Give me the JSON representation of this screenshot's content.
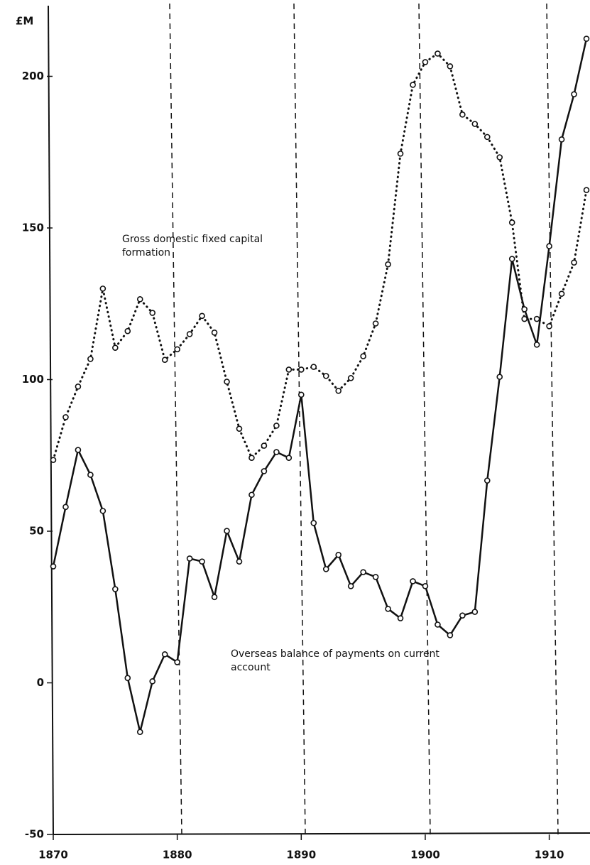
{
  "chart_data": {
    "type": "line",
    "y_unit_label": "£M",
    "x": [
      1870,
      1871,
      1872,
      1873,
      1874,
      1875,
      1876,
      1877,
      1878,
      1879,
      1880,
      1881,
      1882,
      1883,
      1884,
      1885,
      1886,
      1887,
      1888,
      1889,
      1890,
      1891,
      1892,
      1893,
      1894,
      1895,
      1896,
      1897,
      1898,
      1899,
      1900,
      1901,
      1902,
      1903,
      1904,
      1905,
      1906,
      1907,
      1908,
      1909,
      1910,
      1911,
      1912,
      1913
    ],
    "series": [
      {
        "name": "Gross domestic fixed capital formation",
        "color": "#111111",
        "style": "dotted",
        "values": [
          73.5,
          87.6,
          97.7,
          106.8,
          130,
          110.5,
          116,
          126.5,
          122,
          106.5,
          110,
          115,
          121,
          115.5,
          99.3,
          83.8,
          74.2,
          78.2,
          84.8,
          103.3,
          103.3,
          104.2,
          101.2,
          96.3,
          100.5,
          107.7,
          118.5,
          138,
          174.5,
          197.2,
          204.7,
          207.5,
          203.3,
          187.4,
          184.3,
          180,
          173.3,
          151.8,
          120,
          120,
          117.6,
          128.3,
          138.6,
          162.5
        ]
      },
      {
        "name": "Overseas balance of payments on current account",
        "color": "#111111",
        "style": "solid",
        "values": [
          38.4,
          58,
          76.8,
          68.6,
          56.7,
          30.9,
          1.6,
          -16.2,
          0.5,
          9.4,
          6.8,
          41,
          40,
          28.3,
          50.1,
          40,
          62,
          69.8,
          76.1,
          74.2,
          95,
          52.7,
          37.5,
          42.2,
          31.9,
          36.5,
          34.9,
          24.4,
          21.3,
          33.5,
          31.9,
          19.2,
          15.7,
          22.2,
          23.4,
          66.7,
          100.9,
          139.8,
          123.2,
          111.5,
          144,
          179.2,
          194.1,
          212.4
        ]
      }
    ],
    "xlim": [
      1870,
      1913
    ],
    "xticks": [
      1870,
      1880,
      1890,
      1900,
      1910
    ],
    "ylim": [
      -50,
      224
    ],
    "yticks": [
      -50,
      0,
      50,
      100,
      150,
      200
    ],
    "grid": false
  }
}
